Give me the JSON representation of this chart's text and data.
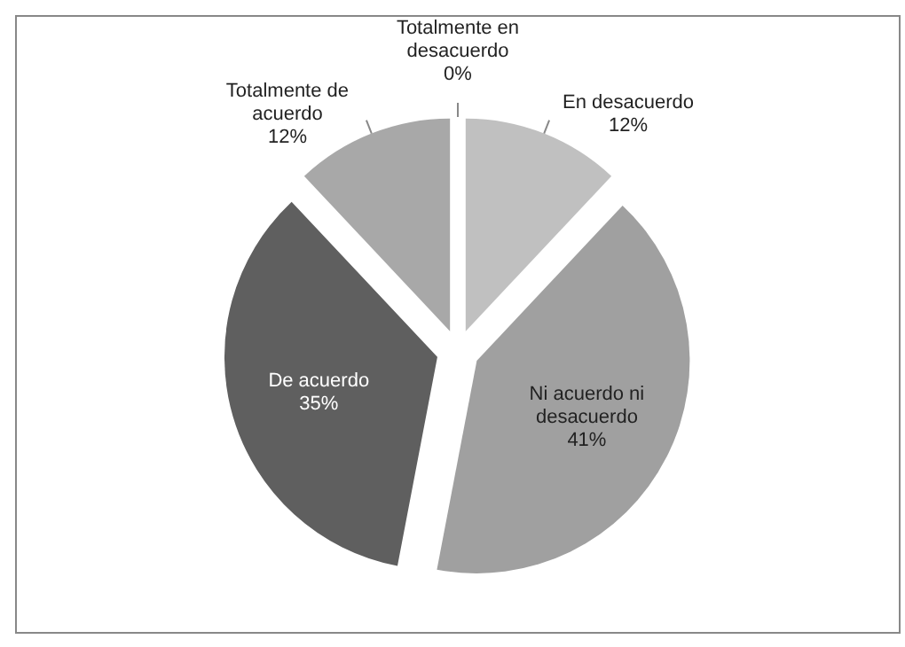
{
  "chart_data": {
    "type": "pie",
    "categories": [
      "Totalmente en desacuerdo",
      "En desacuerdo",
      "Ni acuerdo ni desacuerdo",
      "De acuerdo",
      "Totalmente de acuerdo"
    ],
    "values": [
      0,
      12,
      41,
      35,
      12
    ],
    "colors": [
      "#505050",
      "#c0c0c0",
      "#a0a0a0",
      "#5f5f5f",
      "#a8a8a8"
    ],
    "value_labels": [
      "0%",
      "12%",
      "41%",
      "35%",
      "12%"
    ]
  }
}
